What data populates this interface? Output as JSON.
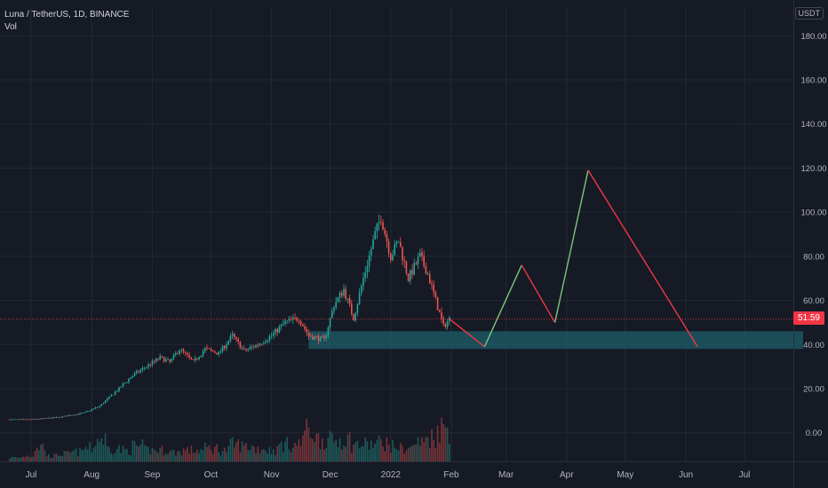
{
  "header": {
    "symbol": "Luna / TetherUS, 1D, BINANCE",
    "indicator": "Vol"
  },
  "price_axis": {
    "unit": "USDT",
    "current_price_label": "51.59"
  },
  "colors": {
    "up": "#26a69a",
    "down": "#ef5350",
    "grid": "#242832",
    "zone": "#1e5f6b",
    "projection_up": "#7bc67b",
    "projection_down": "#f23645",
    "price_line": "#f23645"
  },
  "chart_data": {
    "type": "candlestick",
    "y_ticks": [
      "180.00",
      "160.00",
      "140.00",
      "120.00",
      "100.00",
      "80.00",
      "60.00",
      "40.00",
      "20.00",
      "0.00"
    ],
    "y_tick_values": [
      180,
      160,
      140,
      120,
      100,
      80,
      60,
      40,
      20,
      0
    ],
    "x_ticks": [
      "Jul",
      "Aug",
      "Sep",
      "Oct",
      "Nov",
      "Dec",
      "2022",
      "Feb",
      "Mar",
      "Apr",
      "May",
      "Jun",
      "Jul"
    ],
    "ylim": [
      -13,
      193
    ],
    "current_price": 51.59,
    "price_path": [
      [
        "2021-06-20",
        6
      ],
      [
        "2021-07-01",
        6
      ],
      [
        "2021-07-15",
        7
      ],
      [
        "2021-07-28",
        9
      ],
      [
        "2021-08-05",
        12
      ],
      [
        "2021-08-15",
        20
      ],
      [
        "2021-08-22",
        26
      ],
      [
        "2021-08-29",
        30
      ],
      [
        "2021-09-05",
        34
      ],
      [
        "2021-09-10",
        32
      ],
      [
        "2021-09-15",
        38
      ],
      [
        "2021-09-22",
        32
      ],
      [
        "2021-09-28",
        38
      ],
      [
        "2021-10-05",
        36
      ],
      [
        "2021-10-12",
        44
      ],
      [
        "2021-10-18",
        37
      ],
      [
        "2021-10-25",
        40
      ],
      [
        "2021-11-01",
        44
      ],
      [
        "2021-11-08",
        50
      ],
      [
        "2021-11-15",
        52
      ],
      [
        "2021-11-20",
        44
      ],
      [
        "2021-11-28",
        42
      ],
      [
        "2021-12-03",
        58
      ],
      [
        "2021-12-08",
        65
      ],
      [
        "2021-12-13",
        52
      ],
      [
        "2021-12-18",
        70
      ],
      [
        "2021-12-24",
        90
      ],
      [
        "2021-12-27",
        98
      ],
      [
        "2022-01-01",
        80
      ],
      [
        "2022-01-05",
        87
      ],
      [
        "2022-01-10",
        70
      ],
      [
        "2022-01-16",
        80
      ],
      [
        "2022-01-20",
        72
      ],
      [
        "2022-01-24",
        60
      ],
      [
        "2022-01-28",
        48
      ],
      [
        "2022-01-31",
        51.6
      ]
    ],
    "volume_rel": [
      0.1,
      0.15,
      0.4,
      0.15,
      0.2,
      0.25,
      0.35,
      0.6,
      0.35,
      0.3,
      0.4,
      0.3,
      0.3,
      0.25,
      0.3,
      0.3,
      0.35,
      0.3,
      0.45,
      0.4,
      0.35,
      0.3,
      0.45,
      0.45,
      0.8,
      0.6,
      0.55,
      0.6,
      0.45,
      0.45,
      0.5,
      0.4,
      0.35,
      0.5,
      0.65,
      0.9
    ],
    "support_zone": {
      "start": "2021-11-20",
      "end": "2022-07-31",
      "low": 38,
      "high": 46
    },
    "projection": [
      [
        "2022-01-31",
        51.6
      ],
      [
        "2022-02-18",
        39
      ],
      [
        "2022-03-09",
        76
      ],
      [
        "2022-03-26",
        50
      ],
      [
        "2022-04-12",
        119
      ],
      [
        "2022-06-07",
        39
      ]
    ]
  }
}
